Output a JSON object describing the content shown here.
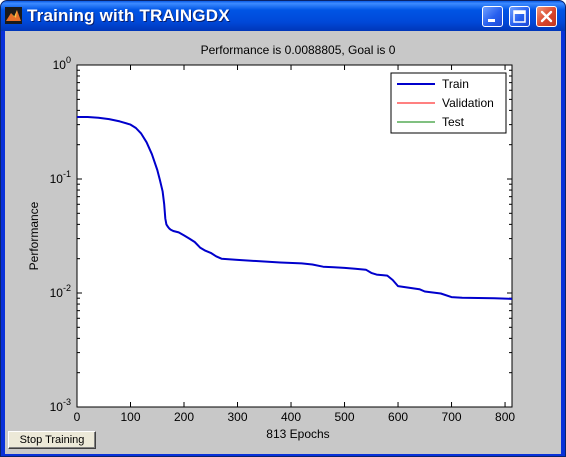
{
  "window": {
    "title": "Training with TRAINGDX",
    "controls": [
      "minimize",
      "maximize",
      "close"
    ],
    "icon": "matlab-figure-icon"
  },
  "stop_button_label": "Stop Training",
  "chart_data": {
    "type": "line",
    "title": "Performance is 0.0088805, Goal is 0",
    "xlabel": "813 Epochs",
    "ylabel": "Performance",
    "xlim": [
      0,
      813
    ],
    "ylim": [
      0.001,
      1
    ],
    "yscale": "log",
    "xticks": [
      0,
      100,
      200,
      300,
      400,
      500,
      600,
      700,
      800
    ],
    "yticks": [
      {
        "base": "10",
        "exp": "0",
        "value": 1
      },
      {
        "base": "10",
        "exp": "-1",
        "value": 0.1
      },
      {
        "base": "10",
        "exp": "-2",
        "value": 0.01
      },
      {
        "base": "10",
        "exp": "-3",
        "value": 0.001
      }
    ],
    "grid": false,
    "legend_position": "top-right",
    "series": [
      {
        "name": "Train",
        "color": "#0000cc",
        "x": [
          0,
          20,
          40,
          60,
          80,
          100,
          110,
          120,
          130,
          140,
          150,
          155,
          160,
          163,
          165,
          167,
          170,
          172,
          175,
          180,
          190,
          200,
          210,
          220,
          230,
          240,
          250,
          260,
          270,
          300,
          380,
          420,
          440,
          460,
          480,
          500,
          520,
          540,
          550,
          560,
          580,
          590,
          600,
          640,
          650,
          680,
          700,
          720,
          780,
          813
        ],
        "y": [
          0.35,
          0.35,
          0.345,
          0.335,
          0.32,
          0.3,
          0.28,
          0.25,
          0.21,
          0.165,
          0.12,
          0.098,
          0.078,
          0.06,
          0.045,
          0.04,
          0.038,
          0.037,
          0.036,
          0.035,
          0.034,
          0.032,
          0.03,
          0.028,
          0.025,
          0.0235,
          0.0225,
          0.021,
          0.02,
          0.0195,
          0.0185,
          0.0182,
          0.0178,
          0.017,
          0.0168,
          0.0166,
          0.0163,
          0.016,
          0.015,
          0.0145,
          0.0142,
          0.013,
          0.0115,
          0.0108,
          0.0103,
          0.0099,
          0.0092,
          0.0091,
          0.009,
          0.00888
        ]
      },
      {
        "name": "Validation",
        "color": "#ff0000",
        "x": [],
        "y": []
      },
      {
        "name": "Test",
        "color": "#008000",
        "x": [],
        "y": []
      }
    ]
  }
}
